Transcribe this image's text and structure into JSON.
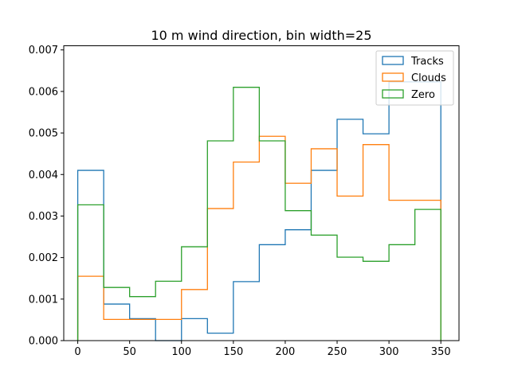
{
  "chart_data": {
    "type": "histogram-step",
    "title": "10 m wind direction, bin width=25",
    "xlabel": "",
    "ylabel": "",
    "xlim": [
      -13.5,
      367.5
    ],
    "ylim": [
      0,
      0.0071
    ],
    "x_ticks": [
      "0",
      "50",
      "100",
      "150",
      "200",
      "250",
      "300",
      "350"
    ],
    "y_ticks": [
      "0.000",
      "0.001",
      "0.002",
      "0.003",
      "0.004",
      "0.005",
      "0.006",
      "0.007"
    ],
    "bin_edges": [
      0,
      25,
      50,
      75,
      100,
      125,
      150,
      175,
      200,
      225,
      250,
      275,
      300,
      325,
      350
    ],
    "grid": false,
    "legend_position": "upper right",
    "series": [
      {
        "name": "Tracks",
        "color": "#1f77b4",
        "values": [
          0.0041,
          0.00088,
          0.00053,
          0.0,
          0.00053,
          0.00018,
          0.00142,
          0.00231,
          0.00267,
          0.0041,
          0.00533,
          0.00498,
          0.00623,
          0.00623
        ]
      },
      {
        "name": "Clouds",
        "color": "#ff7f0e",
        "values": [
          0.00155,
          0.00051,
          0.00051,
          0.00051,
          0.00123,
          0.00318,
          0.0043,
          0.00492,
          0.00379,
          0.00462,
          0.00348,
          0.00472,
          0.00338,
          0.00338
        ]
      },
      {
        "name": "Zero",
        "color": "#2ca02c",
        "values": [
          0.00327,
          0.00128,
          0.00106,
          0.00143,
          0.00226,
          0.00481,
          0.0061,
          0.00481,
          0.00313,
          0.00254,
          0.00201,
          0.00191,
          0.00231,
          0.00316
        ]
      }
    ]
  }
}
